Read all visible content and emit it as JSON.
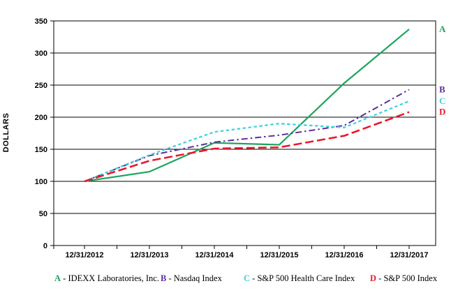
{
  "chart_data": {
    "type": "line",
    "title": "",
    "ylabel": "DOLLARS",
    "xlabel": "",
    "grid": true,
    "ylim": [
      0,
      350
    ],
    "ytick_step": 50,
    "legend_position": "bottom",
    "axis_color": "#000000",
    "background_color": "#ffffff",
    "x": [
      "12/31/2012",
      "12/31/2013",
      "12/31/2014",
      "12/31/2015",
      "12/31/2016",
      "12/31/2017"
    ],
    "series": [
      {
        "key": "A",
        "name": "IDEXX Laboratories, Inc.",
        "color": "#1CA35C",
        "line_style": "solid",
        "values": [
          100,
          115,
          160,
          157,
          253,
          337
        ]
      },
      {
        "key": "B",
        "name": "Nasdaq Index",
        "color": "#5C2E9E",
        "line_style": "dash-dot",
        "values": [
          100,
          140,
          161,
          172,
          187,
          243
        ]
      },
      {
        "key": "C",
        "name": "S&P 500 Health Care Index",
        "color": "#3FD0DD",
        "line_style": "short-dash",
        "values": [
          100,
          141,
          177,
          190,
          184,
          225
        ]
      },
      {
        "key": "D",
        "name": "S&P 500 Index",
        "color": "#E8192C",
        "line_style": "long-dash",
        "values": [
          100,
          132,
          151,
          153,
          171,
          208
        ]
      }
    ]
  },
  "legend": {
    "separator": " - "
  }
}
